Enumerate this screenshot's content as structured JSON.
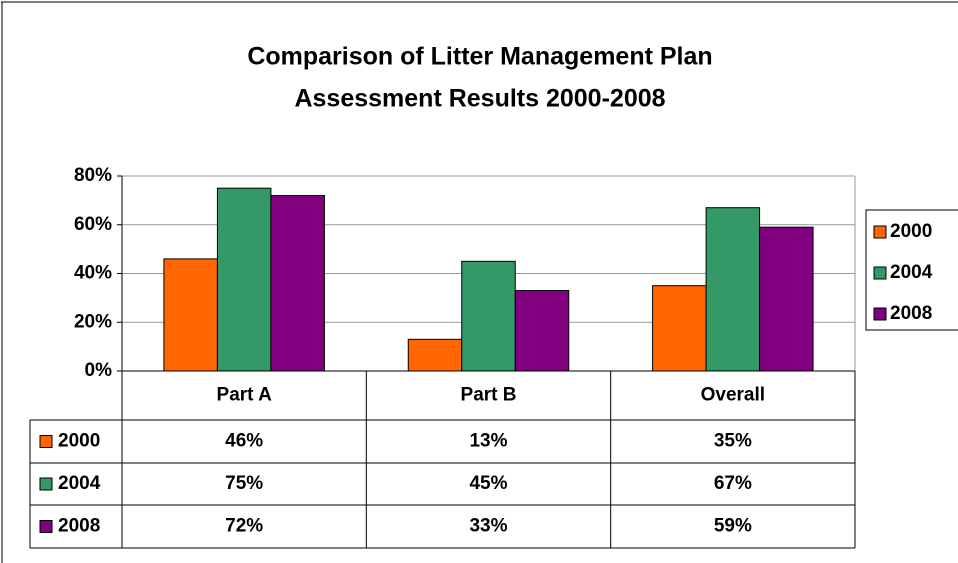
{
  "chart_data": {
    "type": "bar",
    "title": [
      "Comparison of Litter Management Plan",
      "Assessment Results 2000-2008"
    ],
    "categories": [
      "Part A",
      "Part B",
      "Overall"
    ],
    "series": [
      {
        "name": "2000",
        "color": "#ff6600",
        "values": [
          46,
          13,
          35
        ],
        "value_labels": [
          "46%",
          "13%",
          "35%"
        ]
      },
      {
        "name": "2004",
        "color": "#339966",
        "values": [
          75,
          45,
          67
        ],
        "value_labels": [
          "75%",
          "45%",
          "67%"
        ]
      },
      {
        "name": "2008",
        "color": "#800080",
        "values": [
          72,
          33,
          59
        ],
        "value_labels": [
          "72%",
          "33%",
          "59%"
        ]
      }
    ],
    "ylim": [
      0,
      80
    ],
    "yticks": [
      {
        "value": 0,
        "label": "0%"
      },
      {
        "value": 20,
        "label": "20%"
      },
      {
        "value": 40,
        "label": "40%"
      },
      {
        "value": 60,
        "label": "60%"
      },
      {
        "value": 80,
        "label": "80%"
      }
    ],
    "grid": true,
    "legend": "right",
    "data_table": true
  }
}
